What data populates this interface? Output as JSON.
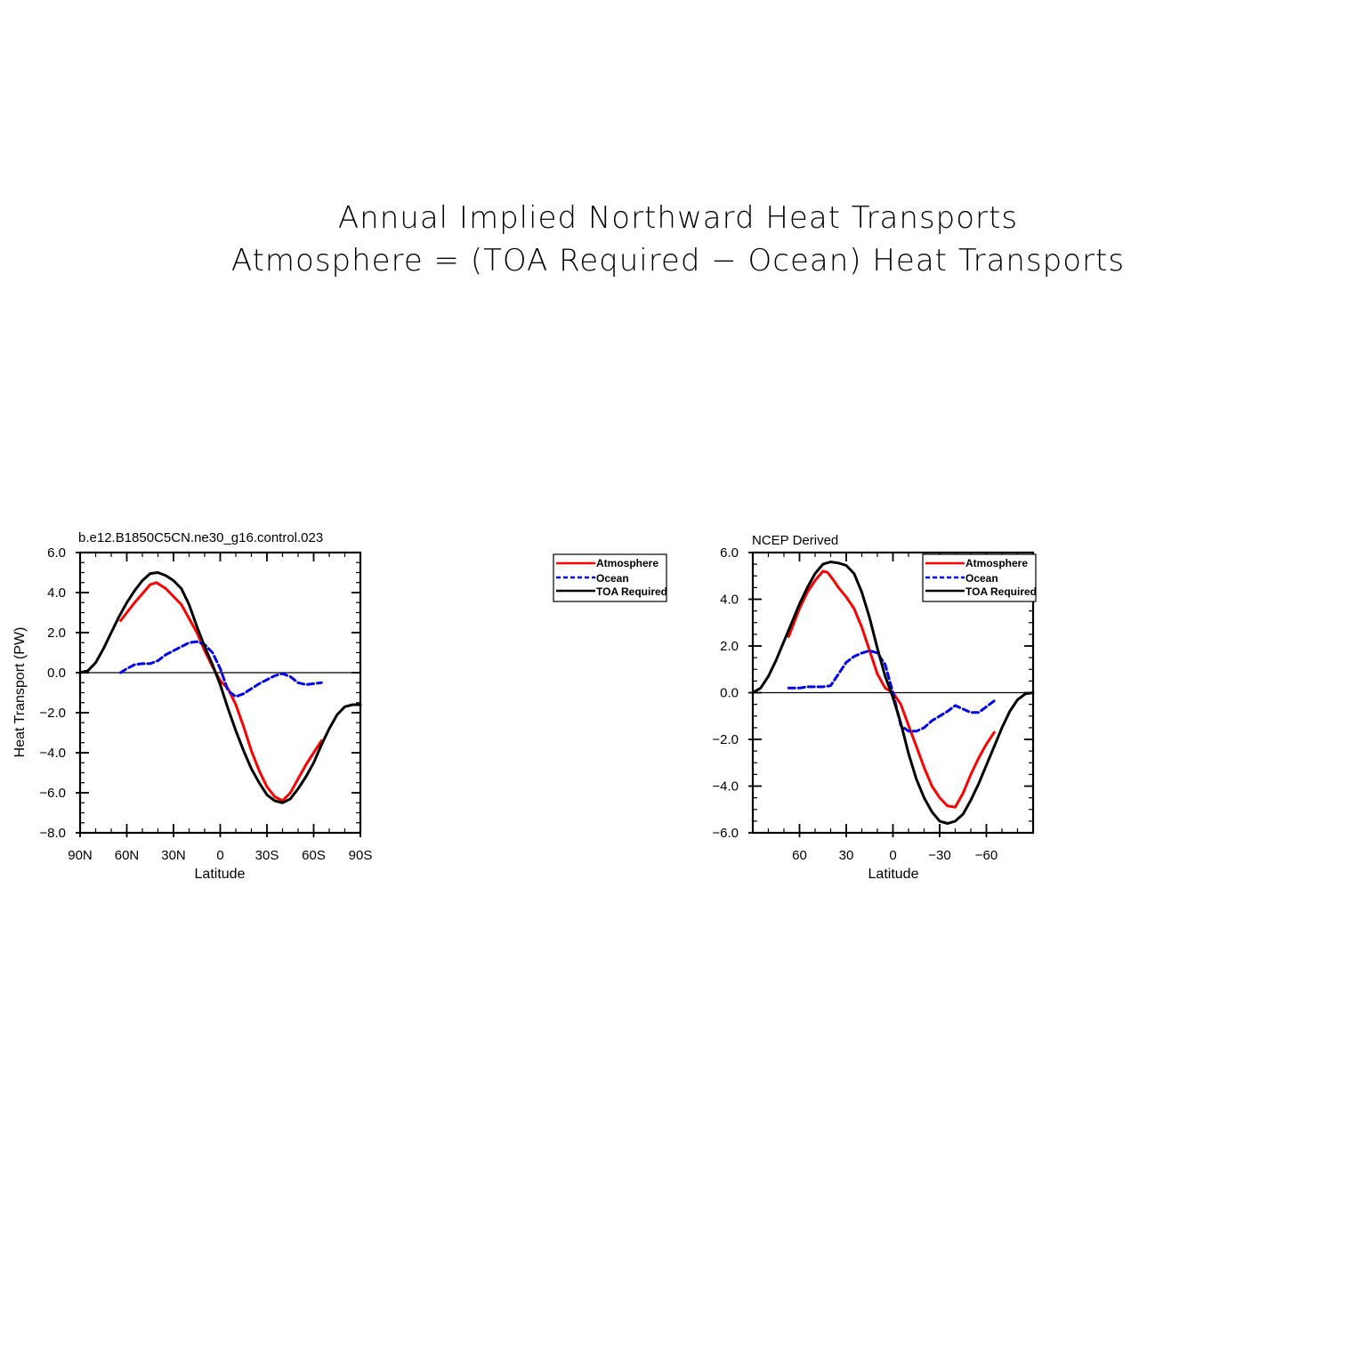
{
  "figure": {
    "title_line1": "Annual Implied Northward Heat Transports",
    "title_line2": "Atmosphere = (TOA Required − Ocean) Heat Transports"
  },
  "colors": {
    "atmosphere": "#ff0000",
    "ocean": "#0000ee",
    "toa": "#000000"
  },
  "chart_data": [
    {
      "type": "line",
      "title": "b.e12.B1850C5CN.ne30_g16.control.023",
      "xlabel": "Latitude",
      "ylabel": "Heat Transport (PW)",
      "xlim": [
        90,
        -90
      ],
      "ylim": [
        -8,
        6
      ],
      "xticks": [
        90,
        60,
        30,
        0,
        -30,
        -60,
        -90
      ],
      "xtick_labels": [
        "90N",
        "60N",
        "30N",
        "0",
        "30S",
        "60S",
        "90S"
      ],
      "yticks": [
        6,
        4,
        2,
        0,
        -2,
        -4,
        -6,
        -8
      ],
      "ytick_labels": [
        "6.0",
        "4.0",
        "2.0",
        "0.0",
        "−2.0",
        "−4.0",
        "−6.0",
        "−8.0"
      ],
      "grid": false,
      "legend": {
        "placement": "outside-right",
        "entries": [
          "Atmosphere",
          "Ocean",
          "TOA Required"
        ]
      },
      "series": [
        {
          "name": "Atmosphere",
          "style": "solid",
          "color_key": "atmosphere",
          "x": [
            64,
            55,
            45,
            41,
            35,
            25,
            15,
            10,
            5,
            0,
            -5,
            -10,
            -15,
            -20,
            -25,
            -30,
            -35,
            -40,
            -45,
            -50,
            -55,
            -60,
            -65
          ],
          "y": [
            2.6,
            3.5,
            4.4,
            4.5,
            4.2,
            3.4,
            2.0,
            1.1,
            0.3,
            -0.4,
            -0.8,
            -1.6,
            -2.7,
            -3.9,
            -4.9,
            -5.7,
            -6.2,
            -6.4,
            -6.0,
            -5.3,
            -4.6,
            -4.0,
            -3.4
          ]
        },
        {
          "name": "Ocean",
          "style": "dashed",
          "color_key": "ocean",
          "x": [
            64,
            60,
            55,
            50,
            45,
            40,
            35,
            30,
            25,
            20,
            15,
            10,
            5,
            0,
            -5,
            -10,
            -15,
            -20,
            -25,
            -30,
            -35,
            -40,
            -45,
            -50,
            -55,
            -60,
            -65
          ],
          "y": [
            0.0,
            0.2,
            0.4,
            0.45,
            0.45,
            0.6,
            0.9,
            1.1,
            1.3,
            1.5,
            1.55,
            1.4,
            1.0,
            0.2,
            -0.9,
            -1.2,
            -1.05,
            -0.8,
            -0.55,
            -0.35,
            -0.15,
            -0.05,
            -0.2,
            -0.5,
            -0.6,
            -0.55,
            -0.5
          ]
        },
        {
          "name": "TOA Required",
          "style": "solid",
          "color_key": "toa",
          "x": [
            90,
            85,
            80,
            75,
            70,
            65,
            60,
            55,
            50,
            45,
            40,
            35,
            30,
            25,
            20,
            15,
            10,
            5,
            0,
            -5,
            -10,
            -15,
            -20,
            -25,
            -30,
            -35,
            -40,
            -45,
            -50,
            -55,
            -60,
            -65,
            -70,
            -75,
            -80,
            -85,
            -90
          ],
          "y": [
            0.0,
            0.1,
            0.5,
            1.2,
            2.0,
            2.8,
            3.5,
            4.1,
            4.6,
            4.95,
            5.0,
            4.85,
            4.6,
            4.2,
            3.4,
            2.3,
            1.3,
            0.4,
            -0.6,
            -1.8,
            -2.9,
            -3.9,
            -4.8,
            -5.5,
            -6.1,
            -6.4,
            -6.5,
            -6.3,
            -5.8,
            -5.2,
            -4.5,
            -3.6,
            -2.8,
            -2.1,
            -1.7,
            -1.6,
            -1.6
          ]
        }
      ]
    },
    {
      "type": "line",
      "title": "NCEP Derived",
      "xlabel": "Latitude",
      "ylabel": "",
      "xlim": [
        90,
        -90
      ],
      "ylim": [
        -6,
        6
      ],
      "xticks": [
        60,
        30,
        0,
        -30,
        -60
      ],
      "xtick_labels": [
        "60",
        "30",
        "0",
        "−30",
        "−60"
      ],
      "yticks": [
        6,
        4,
        2,
        0,
        -2,
        -4,
        -6
      ],
      "ytick_labels": [
        "6.0",
        "4.0",
        "2.0",
        "0.0",
        "−2.0",
        "−4.0",
        "−6.0"
      ],
      "grid": false,
      "legend": {
        "placement": "top-right",
        "entries": [
          "Atmosphere",
          "Ocean",
          "TOA Required"
        ]
      },
      "series": [
        {
          "name": "Atmosphere",
          "style": "solid",
          "color_key": "atmosphere",
          "x": [
            67,
            60,
            55,
            50,
            45,
            42,
            38,
            35,
            30,
            25,
            20,
            15,
            10,
            5,
            0,
            -5,
            -10,
            -15,
            -20,
            -25,
            -30,
            -35,
            -40,
            -45,
            -50,
            -55,
            -60,
            -65
          ],
          "y": [
            2.4,
            3.6,
            4.3,
            4.8,
            5.2,
            5.15,
            4.8,
            4.5,
            4.1,
            3.6,
            2.8,
            1.8,
            0.8,
            0.2,
            0.0,
            -0.5,
            -1.4,
            -2.3,
            -3.2,
            -4.0,
            -4.5,
            -4.85,
            -4.9,
            -4.3,
            -3.5,
            -2.8,
            -2.2,
            -1.7
          ]
        },
        {
          "name": "Ocean",
          "style": "dashed",
          "color_key": "ocean",
          "x": [
            67,
            60,
            55,
            50,
            45,
            40,
            35,
            30,
            25,
            20,
            15,
            10,
            5,
            0,
            -5,
            -10,
            -15,
            -20,
            -25,
            -30,
            -35,
            -40,
            -45,
            -50,
            -55,
            -60,
            -65
          ],
          "y": [
            0.2,
            0.2,
            0.25,
            0.25,
            0.25,
            0.3,
            0.8,
            1.3,
            1.55,
            1.7,
            1.8,
            1.7,
            1.2,
            0.0,
            -1.4,
            -1.65,
            -1.65,
            -1.5,
            -1.2,
            -1.0,
            -0.8,
            -0.55,
            -0.7,
            -0.85,
            -0.85,
            -0.6,
            -0.35
          ]
        },
        {
          "name": "TOA Required",
          "style": "solid",
          "color_key": "toa",
          "x": [
            90,
            85,
            80,
            75,
            70,
            65,
            60,
            55,
            50,
            45,
            40,
            35,
            30,
            25,
            20,
            15,
            10,
            5,
            0,
            -5,
            -10,
            -15,
            -20,
            -25,
            -30,
            -35,
            -40,
            -45,
            -50,
            -55,
            -60,
            -65,
            -70,
            -75,
            -80,
            -85,
            -90
          ],
          "y": [
            0.0,
            0.2,
            0.7,
            1.4,
            2.2,
            3.0,
            3.8,
            4.5,
            5.1,
            5.5,
            5.6,
            5.55,
            5.45,
            5.1,
            4.3,
            3.2,
            1.9,
            0.7,
            -0.2,
            -1.3,
            -2.6,
            -3.7,
            -4.5,
            -5.1,
            -5.5,
            -5.6,
            -5.5,
            -5.2,
            -4.6,
            -3.9,
            -3.1,
            -2.3,
            -1.5,
            -0.8,
            -0.3,
            -0.05,
            0.0
          ]
        }
      ]
    }
  ]
}
